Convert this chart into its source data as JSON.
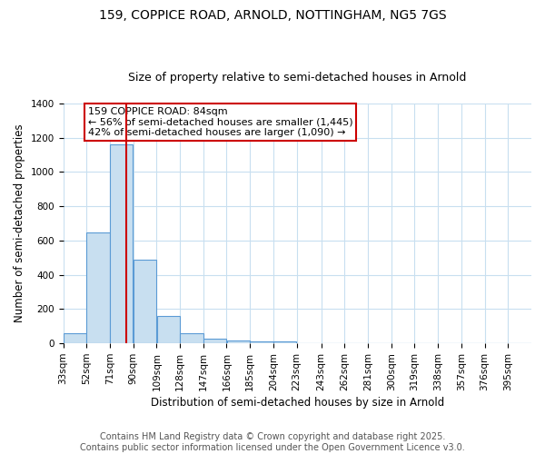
{
  "title_line1": "159, COPPICE ROAD, ARNOLD, NOTTINGHAM, NG5 7GS",
  "title_line2": "Size of property relative to semi-detached houses in Arnold",
  "xlabel": "Distribution of semi-detached houses by size in Arnold",
  "ylabel": "Number of semi-detached properties",
  "footer_line1": "Contains HM Land Registry data © Crown copyright and database right 2025.",
  "footer_line2": "Contains public sector information licensed under the Open Government Licence v3.0.",
  "bin_edges": [
    33,
    52,
    71,
    90,
    109,
    128,
    147,
    166,
    185,
    204,
    223,
    243,
    262,
    281,
    300,
    319,
    338,
    357,
    376,
    395,
    414
  ],
  "bin_counts": [
    60,
    650,
    1160,
    490,
    160,
    60,
    30,
    15,
    10,
    10,
    0,
    0,
    0,
    0,
    0,
    0,
    0,
    0,
    0,
    0
  ],
  "bar_color": "#c8dff0",
  "bar_edge_color": "#5b9bd5",
  "property_size": 84,
  "red_line_color": "#cc0000",
  "annotation_text_line1": "159 COPPICE ROAD: 84sqm",
  "annotation_text_line2": "← 56% of semi-detached houses are smaller (1,445)",
  "annotation_text_line3": "42% of semi-detached houses are larger (1,090) →",
  "annotation_box_color": "#cc0000",
  "annotation_box_bg": "#ffffff",
  "ylim": [
    0,
    1400
  ],
  "yticks": [
    0,
    200,
    400,
    600,
    800,
    1000,
    1200,
    1400
  ],
  "background_color": "#ffffff",
  "grid_color": "#c8dff0",
  "title_fontsize": 10,
  "subtitle_fontsize": 9,
  "axis_label_fontsize": 8.5,
  "tick_fontsize": 7.5,
  "annotation_fontsize": 8,
  "footer_fontsize": 7
}
